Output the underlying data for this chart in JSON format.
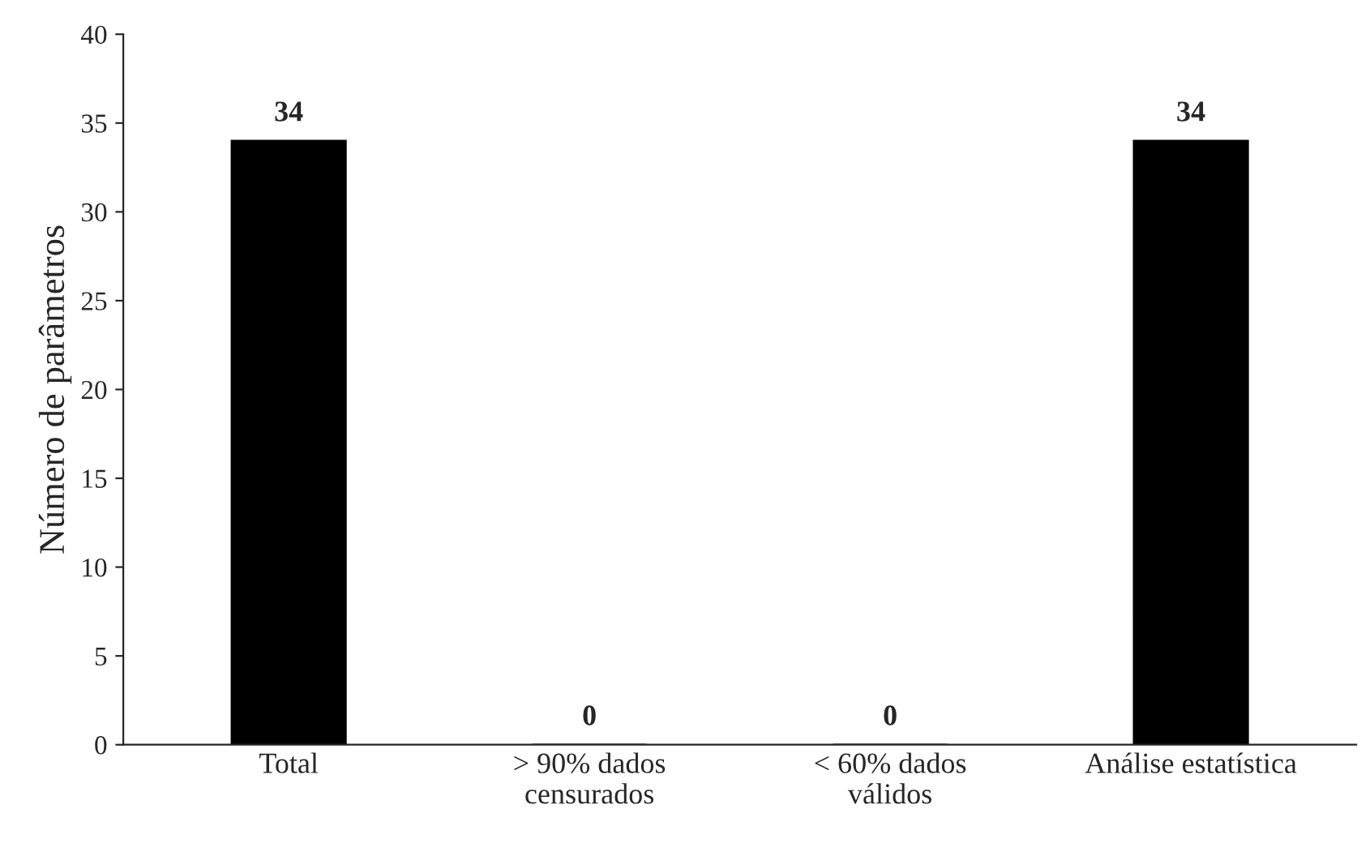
{
  "chart_data": {
    "type": "bar",
    "ylabel": "Número de parâmetros",
    "categories": [
      "Total",
      "> 90% dados\ncensurados",
      "< 60% dados\nválidos",
      "Análise estatística"
    ],
    "values": [
      34,
      0,
      0,
      34
    ],
    "color": "#000000",
    "ylim": [
      0,
      40
    ],
    "yticks": [
      0,
      5,
      10,
      15,
      20,
      25,
      30,
      35,
      40
    ],
    "grid": false,
    "data_labels": true
  }
}
